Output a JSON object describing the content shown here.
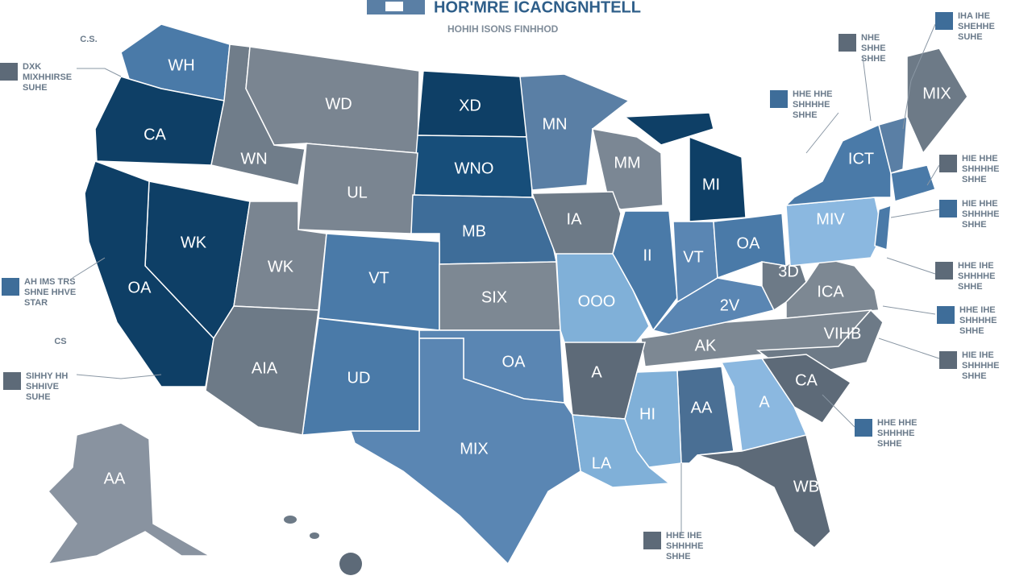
{
  "header": {
    "title": "HOR'MRE ICACNGNHTELL",
    "subtitle": "HOHIH ISONS  FINHHOD"
  },
  "states": [
    {
      "label": "WH"
    },
    {
      "label": "CA"
    },
    {
      "label": "WN"
    },
    {
      "label": "WD"
    },
    {
      "label": "XD"
    },
    {
      "label": "WNO"
    },
    {
      "label": "MN"
    },
    {
      "label": "MM"
    },
    {
      "label": "MI"
    },
    {
      "label": "UL"
    },
    {
      "label": "MB"
    },
    {
      "label": "IA"
    },
    {
      "label": "WK"
    },
    {
      "label": "OA"
    },
    {
      "label": "WK"
    },
    {
      "label": "VT"
    },
    {
      "label": "SIX"
    },
    {
      "label": "OOO"
    },
    {
      "label": "II"
    },
    {
      "label": "VT"
    },
    {
      "label": "OA"
    },
    {
      "label": "MIV"
    },
    {
      "label": "ICT"
    },
    {
      "label": "MIX"
    },
    {
      "label": "3D"
    },
    {
      "label": "ICA"
    },
    {
      "label": "2V"
    },
    {
      "label": "AK"
    },
    {
      "label": "VIHB"
    },
    {
      "label": "CA"
    },
    {
      "label": "A"
    },
    {
      "label": "AA"
    },
    {
      "label": "HI"
    },
    {
      "label": "LA"
    },
    {
      "label": "A"
    },
    {
      "label": "OA"
    },
    {
      "label": "MIX"
    },
    {
      "label": "UD"
    },
    {
      "label": "AIA"
    },
    {
      "label": "WB"
    },
    {
      "label": "AA"
    }
  ],
  "callouts": [
    {
      "lines": [
        "DXK",
        "MIXHHIRSE",
        "SUHE"
      ]
    },
    {
      "lines": [
        "AH IMS TRS",
        "SHNE HHVE",
        "STAR"
      ]
    },
    {
      "lines": [
        "SIHHY HH",
        "SHHIVE",
        "SUHE"
      ]
    },
    {
      "lines": [
        "IHA IHE",
        "SHEHHE",
        "SUHE"
      ]
    },
    {
      "lines": [
        "NHE",
        "SHHE",
        "SHHE"
      ]
    },
    {
      "lines": [
        "HHE HHE",
        "SHHHHE",
        "SHHE"
      ]
    },
    {
      "lines": [
        "HIE HHE",
        "SHHHHE",
        "SHHE"
      ]
    },
    {
      "lines": [
        "HIE HHE",
        "SHHHHE",
        "SHHE"
      ]
    },
    {
      "lines": [
        "HHE IHE",
        "SHHHHE",
        "SHHE"
      ]
    },
    {
      "lines": [
        "HHE IHE",
        "SHHHHE",
        "SHHE"
      ]
    },
    {
      "lines": [
        "HIE IHE",
        "SHHHHE",
        "SHHE"
      ]
    },
    {
      "lines": [
        "HHE HHE",
        "SHHHHE",
        "SHHE"
      ]
    },
    {
      "lines": [
        "HHE IHE",
        "SHHHHE",
        "SHHE"
      ]
    }
  ],
  "marks": [
    {
      "label": "C.S."
    },
    {
      "label": "CS"
    }
  ]
}
